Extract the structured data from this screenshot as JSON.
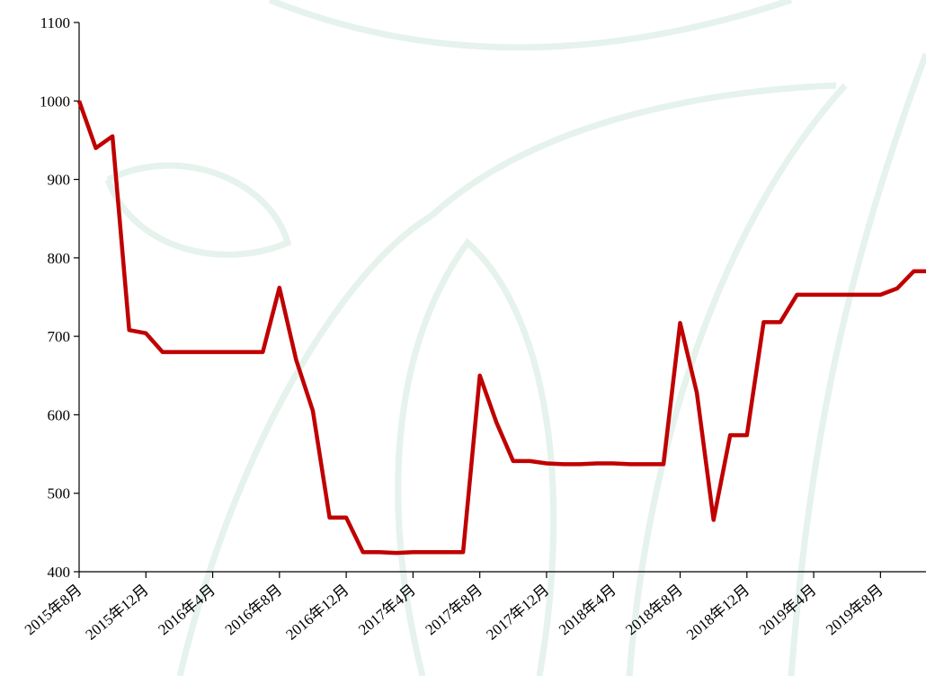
{
  "chart_data": {
    "type": "line",
    "categories": [
      "2015年8月",
      null,
      null,
      null,
      "2015年12月",
      null,
      null,
      null,
      "2016年4月",
      null,
      null,
      null,
      "2016年8月",
      null,
      null,
      null,
      "2016年12月",
      null,
      null,
      null,
      "2017年4月",
      null,
      null,
      null,
      "2017年8月",
      null,
      null,
      null,
      "2017年12月",
      null,
      null,
      null,
      "2018年4月",
      null,
      null,
      null,
      "2018年8月",
      null,
      null,
      null,
      "2018年12月",
      null,
      null,
      null,
      "2019年4月",
      null,
      null,
      null,
      "2019年8月",
      null,
      null,
      null
    ],
    "series": [
      {
        "color": "#c00000",
        "values": [
          1000,
          940,
          955,
          708,
          704,
          680,
          680,
          680,
          680,
          680,
          680,
          680,
          762,
          670,
          605,
          469,
          469,
          425,
          425,
          424,
          425,
          425,
          425,
          425,
          650,
          590,
          541,
          541,
          538,
          537,
          537,
          538,
          538,
          537,
          537,
          537,
          717,
          628,
          466,
          574,
          574,
          718,
          718,
          753,
          753,
          753,
          753,
          753,
          753,
          761,
          783,
          783
        ]
      }
    ],
    "ylim": [
      400,
      1100
    ],
    "yticks": [
      400,
      500,
      600,
      700,
      800,
      900,
      1000,
      1100
    ]
  }
}
